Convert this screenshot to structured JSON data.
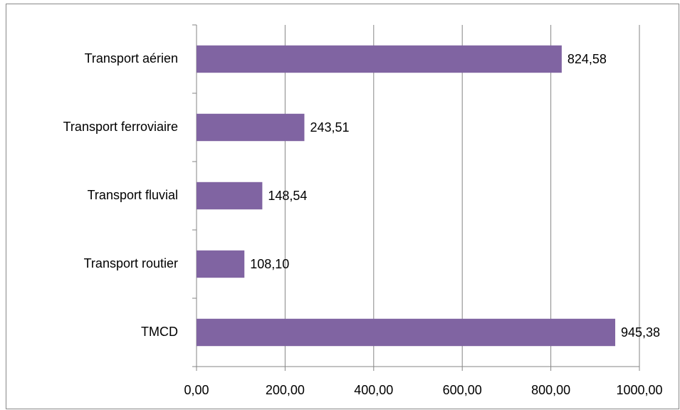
{
  "chart_data": {
    "type": "bar",
    "orientation": "horizontal",
    "categories": [
      "Transport aérien",
      "Transport ferroviaire",
      "Transport fluvial",
      "Transport routier",
      "TMCD"
    ],
    "values": [
      824.58,
      243.51,
      148.54,
      108.1,
      945.38
    ],
    "value_labels": [
      "824,58",
      "243,51",
      "148,54",
      "108,10",
      "945,38"
    ],
    "color": "#8064a2",
    "xlim": [
      0,
      1000
    ],
    "xticks": [
      {
        "value": 0,
        "label": "0,00"
      },
      {
        "value": 200,
        "label": "200,00"
      },
      {
        "value": 400,
        "label": "400,00"
      },
      {
        "value": 600,
        "label": "600,00"
      },
      {
        "value": 800,
        "label": "800,00"
      },
      {
        "value": 1000,
        "label": "1000,00"
      }
    ],
    "grid": true
  }
}
